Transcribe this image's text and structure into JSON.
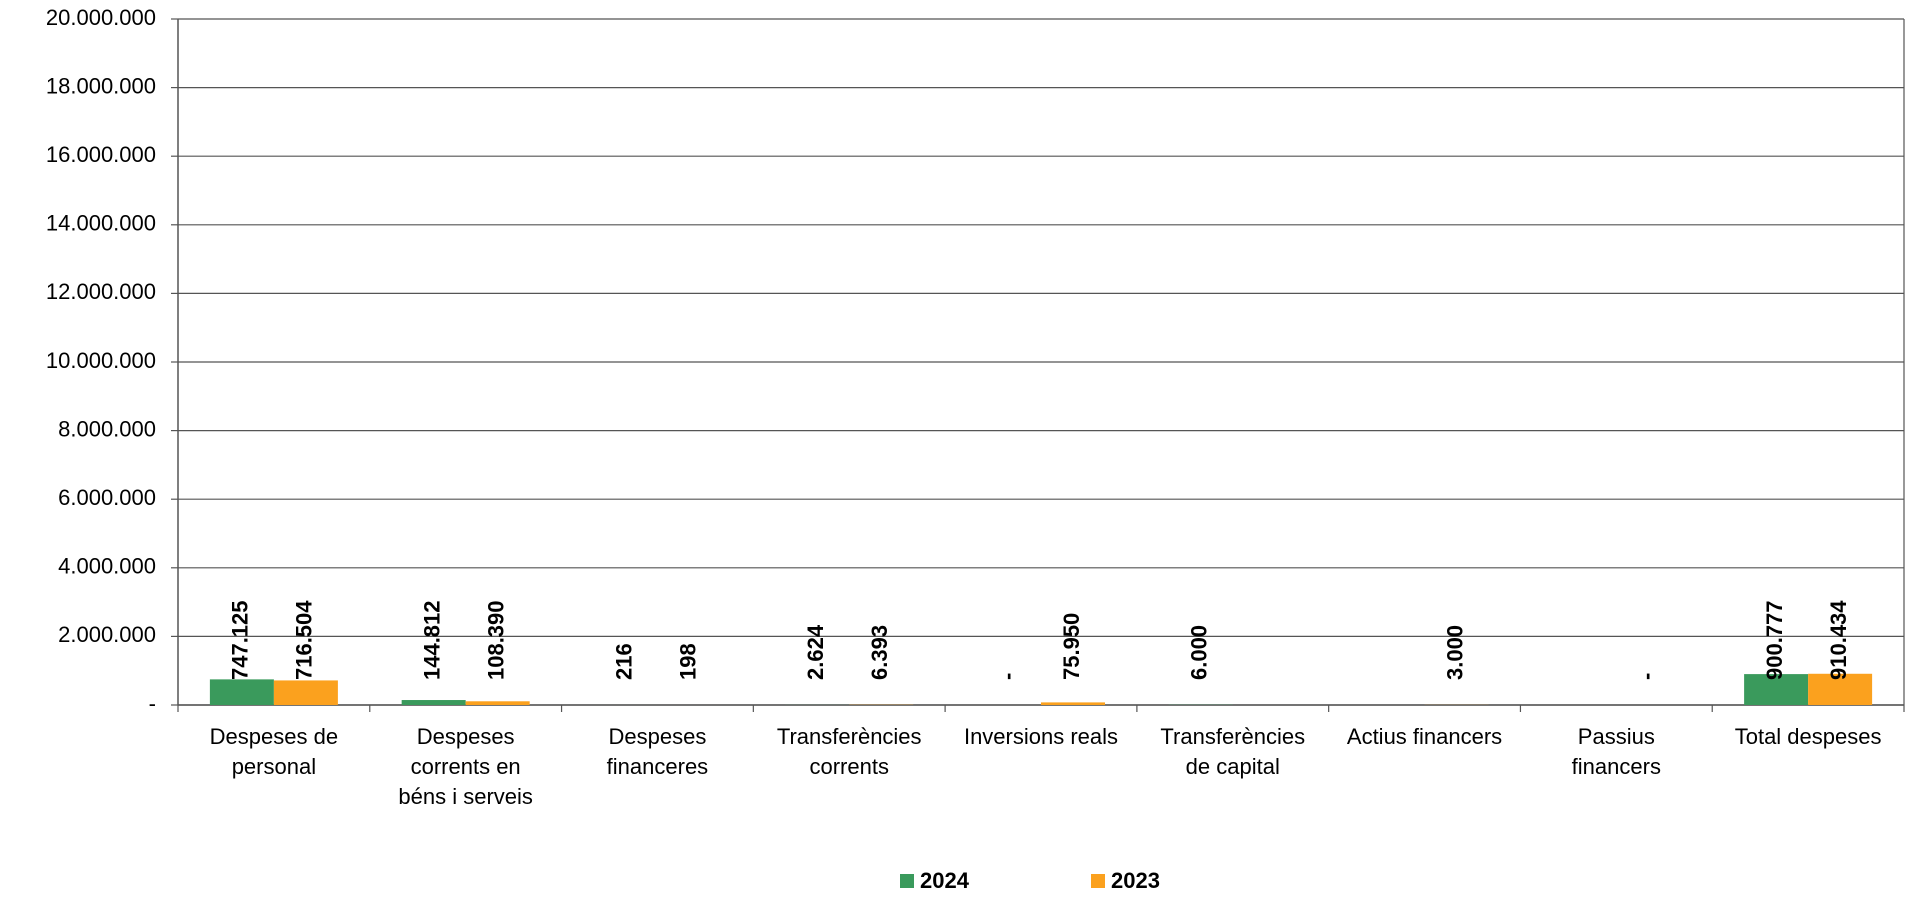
{
  "chart_data": {
    "type": "bar",
    "categories": [
      "Despeses de\npersonal",
      "Despeses\ncorrents en\nbéns i serveis",
      "Despeses\nfinanceres",
      "Transferències\ncorrents",
      "Inversions reals",
      "Transferències\nde capital",
      "Actius financers",
      "Passius\nfinancers",
      "Total despeses"
    ],
    "series": [
      {
        "name": "2024",
        "color": "#3a9a5c",
        "values": [
          747125,
          144812,
          216,
          2624,
          0,
          6000,
          null,
          null,
          900777
        ],
        "value_labels": [
          "747.125",
          "144.812",
          "216",
          "2.624",
          "-",
          "6.000",
          null,
          null,
          "900.777"
        ]
      },
      {
        "name": "2023",
        "color": "#fba11e",
        "values": [
          716504,
          108390,
          198,
          6393,
          75950,
          null,
          3000,
          0,
          910434
        ],
        "value_labels": [
          "716.504",
          "108.390",
          "198",
          "6.393",
          "75.950",
          null,
          "3.000",
          "-",
          "910.434"
        ]
      }
    ],
    "ylim": [
      0,
      20000000
    ],
    "yticks": [
      {
        "value": 0,
        "label": "-"
      },
      {
        "value": 2000000,
        "label": "2.000.000"
      },
      {
        "value": 4000000,
        "label": "4.000.000"
      },
      {
        "value": 6000000,
        "label": "6.000.000"
      },
      {
        "value": 8000000,
        "label": "8.000.000"
      },
      {
        "value": 10000000,
        "label": "10.000.000"
      },
      {
        "value": 12000000,
        "label": "12.000.000"
      },
      {
        "value": 14000000,
        "label": "14.000.000"
      },
      {
        "value": 16000000,
        "label": "16.000.000"
      },
      {
        "value": 18000000,
        "label": "18.000.000"
      },
      {
        "value": 20000000,
        "label": "20.000.000"
      }
    ],
    "grid": true,
    "legend": "bottom"
  }
}
